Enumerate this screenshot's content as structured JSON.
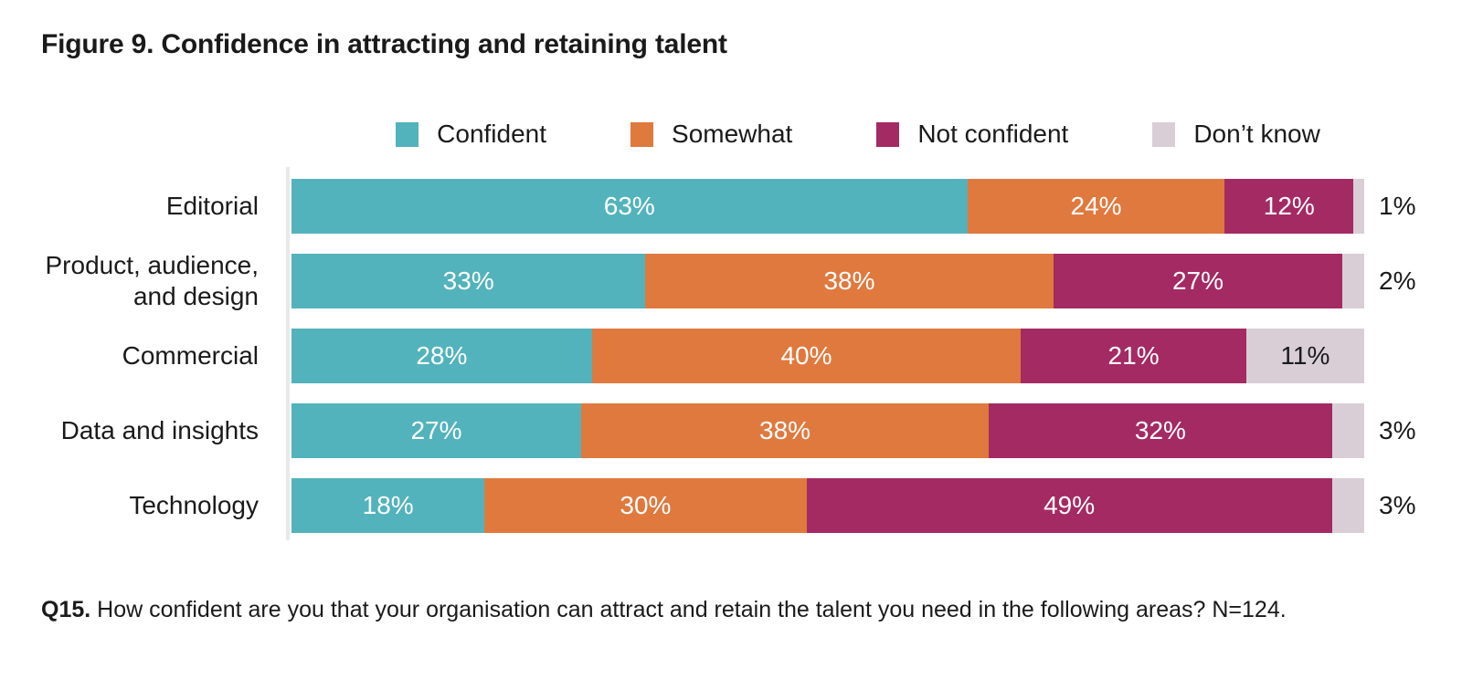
{
  "title": "Figure 9. Confidence in attracting and retaining talent",
  "footnote": {
    "prefix": "Q15.",
    "text": "How confident are you that your organisation can attract and retain the talent you need in the following areas? N=124."
  },
  "chart_data": {
    "type": "bar",
    "orientation": "horizontal",
    "stacked": true,
    "unit": "%",
    "xlim": [
      0,
      100
    ],
    "grid": false,
    "legend_position": "top-center",
    "axis_line_color": "#e9e9e9",
    "title": "Figure 9. Confidence in attracting and retaining talent",
    "series": [
      {
        "name": "Confident",
        "color": "#52b3bc",
        "label_color": "#ffffff"
      },
      {
        "name": "Somewhat",
        "color": "#e0793e",
        "label_color": "#ffffff"
      },
      {
        "name": "Not confident",
        "color": "#a42a64",
        "label_color": "#ffffff"
      },
      {
        "name": "Don’t know",
        "color": "#d9ced6",
        "label_color": "#1a1a1a"
      }
    ],
    "categories": [
      "Editorial",
      "Product, audience, and design",
      "Commercial",
      "Data and insights",
      "Technology"
    ],
    "rows": [
      {
        "category": "Editorial",
        "label_lines": [
          "Editorial"
        ],
        "values": [
          63,
          24,
          12,
          1
        ],
        "inside_labels": [
          true,
          true,
          true,
          false
        ],
        "outside_label": "1%"
      },
      {
        "category": "Product, audience, and design",
        "label_lines": [
          "Product, audience,",
          "and design"
        ],
        "values": [
          33,
          38,
          27,
          2
        ],
        "inside_labels": [
          true,
          true,
          true,
          false
        ],
        "outside_label": "2%"
      },
      {
        "category": "Commercial",
        "label_lines": [
          "Commercial"
        ],
        "values": [
          28,
          40,
          21,
          11
        ],
        "inside_labels": [
          true,
          true,
          true,
          true
        ],
        "outside_label": ""
      },
      {
        "category": "Data and insights",
        "label_lines": [
          "Data and insights"
        ],
        "values": [
          27,
          38,
          32,
          3
        ],
        "inside_labels": [
          true,
          true,
          true,
          false
        ],
        "outside_label": "3%"
      },
      {
        "category": "Technology",
        "label_lines": [
          "Technology"
        ],
        "values": [
          18,
          30,
          49,
          3
        ],
        "inside_labels": [
          true,
          true,
          true,
          false
        ],
        "outside_label": "3%"
      }
    ]
  }
}
